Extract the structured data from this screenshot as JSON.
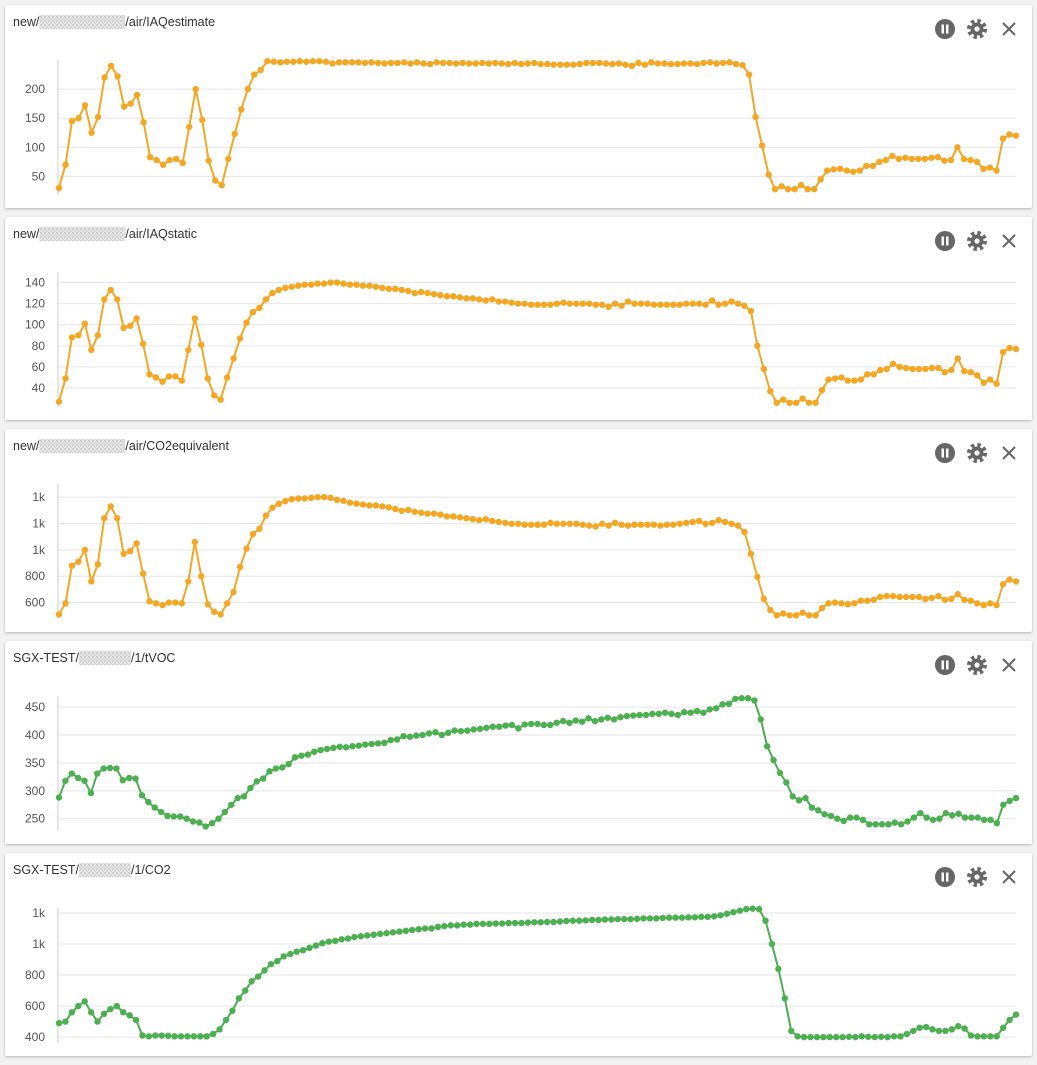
{
  "chart_data": [
    {
      "type": "line",
      "title": [
        "new/",
        "/air/IAQestimate"
      ],
      "color": "#f5a623",
      "grid": true,
      "ylim": [
        18,
        250
      ],
      "yticks": [
        50,
        100,
        150,
        200
      ],
      "values": [
        30,
        70,
        145,
        150,
        172,
        125,
        152,
        220,
        240,
        222,
        170,
        175,
        190,
        143,
        83,
        78,
        70,
        78,
        80,
        73,
        135,
        200,
        147,
        77,
        43,
        35,
        80,
        123,
        165,
        200,
        225,
        233,
        248,
        247,
        246,
        247,
        247,
        248,
        247,
        248,
        248,
        247,
        244,
        246,
        246,
        246,
        246,
        245,
        246,
        245,
        244,
        245,
        245,
        246,
        244,
        246,
        244,
        243,
        246,
        245,
        245,
        244,
        245,
        244,
        244,
        245,
        244,
        245,
        244,
        243,
        245,
        243,
        244,
        245,
        243,
        243,
        242,
        242,
        242,
        242,
        243,
        245,
        245,
        245,
        244,
        243,
        244,
        242,
        240,
        245,
        242,
        246,
        244,
        244,
        243,
        243,
        244,
        244,
        243,
        245,
        246,
        244,
        245,
        246,
        243,
        241,
        225,
        152,
        103,
        53,
        28,
        33,
        28,
        28,
        35,
        28,
        28,
        45,
        60,
        62,
        63,
        60,
        58,
        60,
        68,
        68,
        75,
        78,
        85,
        80,
        82,
        80,
        80,
        80,
        82,
        83,
        77,
        78,
        100,
        80,
        78,
        75,
        63,
        65,
        60,
        115,
        122,
        120
      ]
    },
    {
      "type": "line",
      "title": [
        "new/",
        "/air/IAQstatic"
      ],
      "color": "#f5a623",
      "grid": true,
      "ylim": [
        22,
        150
      ],
      "yticks": [
        40,
        60,
        80,
        100,
        120,
        140
      ],
      "values": [
        27,
        49,
        88,
        90,
        101,
        76,
        90,
        124,
        133,
        124,
        97,
        99,
        106,
        82,
        53,
        50,
        46,
        51,
        51,
        47,
        76,
        106,
        81,
        49,
        33,
        29,
        50,
        68,
        87,
        102,
        112,
        116,
        124,
        130,
        133,
        135,
        136,
        137,
        138,
        138,
        139,
        139,
        140,
        140,
        139,
        138,
        138,
        137,
        137,
        136,
        135,
        134,
        134,
        133,
        132,
        130,
        131,
        130,
        129,
        128,
        127,
        127,
        126,
        125,
        125,
        124,
        123,
        124,
        122,
        122,
        121,
        120,
        120,
        119,
        119,
        119,
        119,
        120,
        121,
        120,
        120,
        120,
        120,
        119,
        119,
        117,
        120,
        118,
        122,
        120,
        120,
        120,
        119,
        119,
        119,
        119,
        119,
        120,
        120,
        120,
        119,
        123,
        119,
        120,
        122,
        120,
        118,
        113,
        80,
        58,
        37,
        26,
        29,
        26,
        26,
        30,
        26,
        26,
        38,
        48,
        49,
        50,
        47,
        47,
        48,
        53,
        53,
        57,
        58,
        63,
        60,
        59,
        58,
        58,
        58,
        59,
        59,
        55,
        57,
        68,
        56,
        55,
        52,
        45,
        48,
        44,
        74,
        78,
        77
      ]
    },
    {
      "type": "line",
      "title": [
        "new/",
        "/air/CO2equivalent"
      ],
      "color": "#f5a623",
      "grid": true,
      "ylim": [
        475,
        1500
      ],
      "yticks": [
        600,
        800,
        {
          "value": 1000,
          "label": "1k"
        },
        {
          "value": 1200,
          "label": "1k"
        },
        {
          "value": 1400,
          "label": "1k"
        }
      ],
      "values": [
        510,
        594,
        880,
        910,
        1000,
        760,
        890,
        1240,
        1330,
        1240,
        970,
        990,
        1050,
        820,
        610,
        594,
        580,
        600,
        600,
        594,
        760,
        1060,
        800,
        587,
        530,
        510,
        594,
        680,
        870,
        1010,
        1120,
        1160,
        1260,
        1320,
        1350,
        1370,
        1385,
        1390,
        1390,
        1395,
        1400,
        1400,
        1395,
        1379,
        1372,
        1358,
        1351,
        1344,
        1337,
        1337,
        1330,
        1323,
        1310,
        1296,
        1303,
        1289,
        1282,
        1275,
        1275,
        1268,
        1254,
        1254,
        1247,
        1240,
        1233,
        1226,
        1233,
        1219,
        1212,
        1205,
        1198,
        1198,
        1191,
        1191,
        1191,
        1191,
        1205,
        1198,
        1198,
        1198,
        1198,
        1191,
        1184,
        1177,
        1198,
        1184,
        1205,
        1191,
        1184,
        1191,
        1191,
        1191,
        1191,
        1184,
        1191,
        1191,
        1198,
        1205,
        1212,
        1219,
        1198,
        1205,
        1226,
        1212,
        1198,
        1184,
        1136,
        970,
        795,
        628,
        544,
        503,
        517,
        503,
        503,
        523,
        503,
        503,
        558,
        594,
        600,
        594,
        587,
        594,
        614,
        614,
        621,
        642,
        649,
        649,
        642,
        642,
        642,
        642,
        628,
        635,
        649,
        621,
        628,
        663,
        621,
        614,
        594,
        580,
        594,
        580,
        739,
        774,
        760
      ]
    },
    {
      "type": "line",
      "title": [
        "SGX-TEST/",
        "/1/tVOC"
      ],
      "color": "#4caf50",
      "grid": true,
      "ylim": [
        228,
        470
      ],
      "yticks": [
        250,
        300,
        350,
        400,
        450
      ],
      "values": [
        288,
        318,
        331,
        323,
        318,
        296,
        331,
        340,
        341,
        340,
        319,
        323,
        322,
        292,
        280,
        270,
        262,
        255,
        254,
        254,
        250,
        245,
        243,
        236,
        242,
        250,
        262,
        275,
        287,
        290,
        305,
        317,
        322,
        335,
        340,
        342,
        348,
        360,
        363,
        365,
        370,
        373,
        375,
        377,
        379,
        378,
        380,
        381,
        383,
        384,
        385,
        386,
        391,
        392,
        398,
        397,
        399,
        400,
        403,
        405,
        400,
        404,
        408,
        407,
        408,
        410,
        411,
        413,
        415,
        415,
        417,
        418,
        412,
        419,
        420,
        420,
        418,
        418,
        422,
        425,
        422,
        426,
        424,
        430,
        425,
        428,
        431,
        428,
        432,
        434,
        435,
        436,
        436,
        438,
        438,
        440,
        438,
        436,
        441,
        440,
        443,
        440,
        446,
        448,
        455,
        456,
        465,
        466,
        466,
        462,
        428,
        380,
        355,
        332,
        315,
        290,
        283,
        287,
        270,
        265,
        258,
        255,
        250,
        246,
        252,
        252,
        248,
        240,
        240,
        240,
        240,
        243,
        240,
        245,
        252,
        260,
        252,
        248,
        250,
        260,
        256,
        259,
        252,
        252,
        252,
        248,
        248,
        242,
        275,
        282,
        287
      ]
    },
    {
      "type": "line",
      "title": [
        "SGX-TEST/",
        "/1/CO2"
      ],
      "color": "#4caf50",
      "grid": true,
      "ylim": [
        362,
        1232
      ],
      "yticks": [
        400,
        600,
        800,
        {
          "value": 1000,
          "label": "1k"
        },
        {
          "value": 1200,
          "label": "1k"
        }
      ],
      "values": [
        490,
        500,
        560,
        600,
        630,
        560,
        500,
        550,
        580,
        600,
        560,
        540,
        510,
        410,
        405,
        410,
        410,
        408,
        405,
        405,
        405,
        405,
        405,
        405,
        420,
        450,
        510,
        570,
        650,
        700,
        760,
        790,
        830,
        870,
        890,
        920,
        935,
        950,
        960,
        975,
        990,
        1005,
        1015,
        1020,
        1030,
        1035,
        1045,
        1050,
        1055,
        1060,
        1065,
        1070,
        1075,
        1080,
        1085,
        1090,
        1095,
        1100,
        1100,
        1110,
        1115,
        1120,
        1120,
        1125,
        1125,
        1130,
        1130,
        1130,
        1132,
        1132,
        1135,
        1135,
        1135,
        1138,
        1140,
        1140,
        1142,
        1142,
        1145,
        1148,
        1150,
        1150,
        1152,
        1155,
        1155,
        1158,
        1158,
        1160,
        1160,
        1160,
        1162,
        1165,
        1165,
        1165,
        1168,
        1170,
        1170,
        1170,
        1172,
        1172,
        1175,
        1175,
        1178,
        1185,
        1195,
        1205,
        1215,
        1225,
        1228,
        1225,
        1150,
        1000,
        840,
        650,
        440,
        405,
        400,
        400,
        400,
        400,
        400,
        400,
        400,
        402,
        400,
        405,
        402,
        400,
        402,
        400,
        405,
        405,
        420,
        440,
        460,
        465,
        450,
        440,
        440,
        450,
        470,
        455,
        410,
        405,
        405,
        405,
        405,
        460,
        510,
        545
      ]
    }
  ]
}
